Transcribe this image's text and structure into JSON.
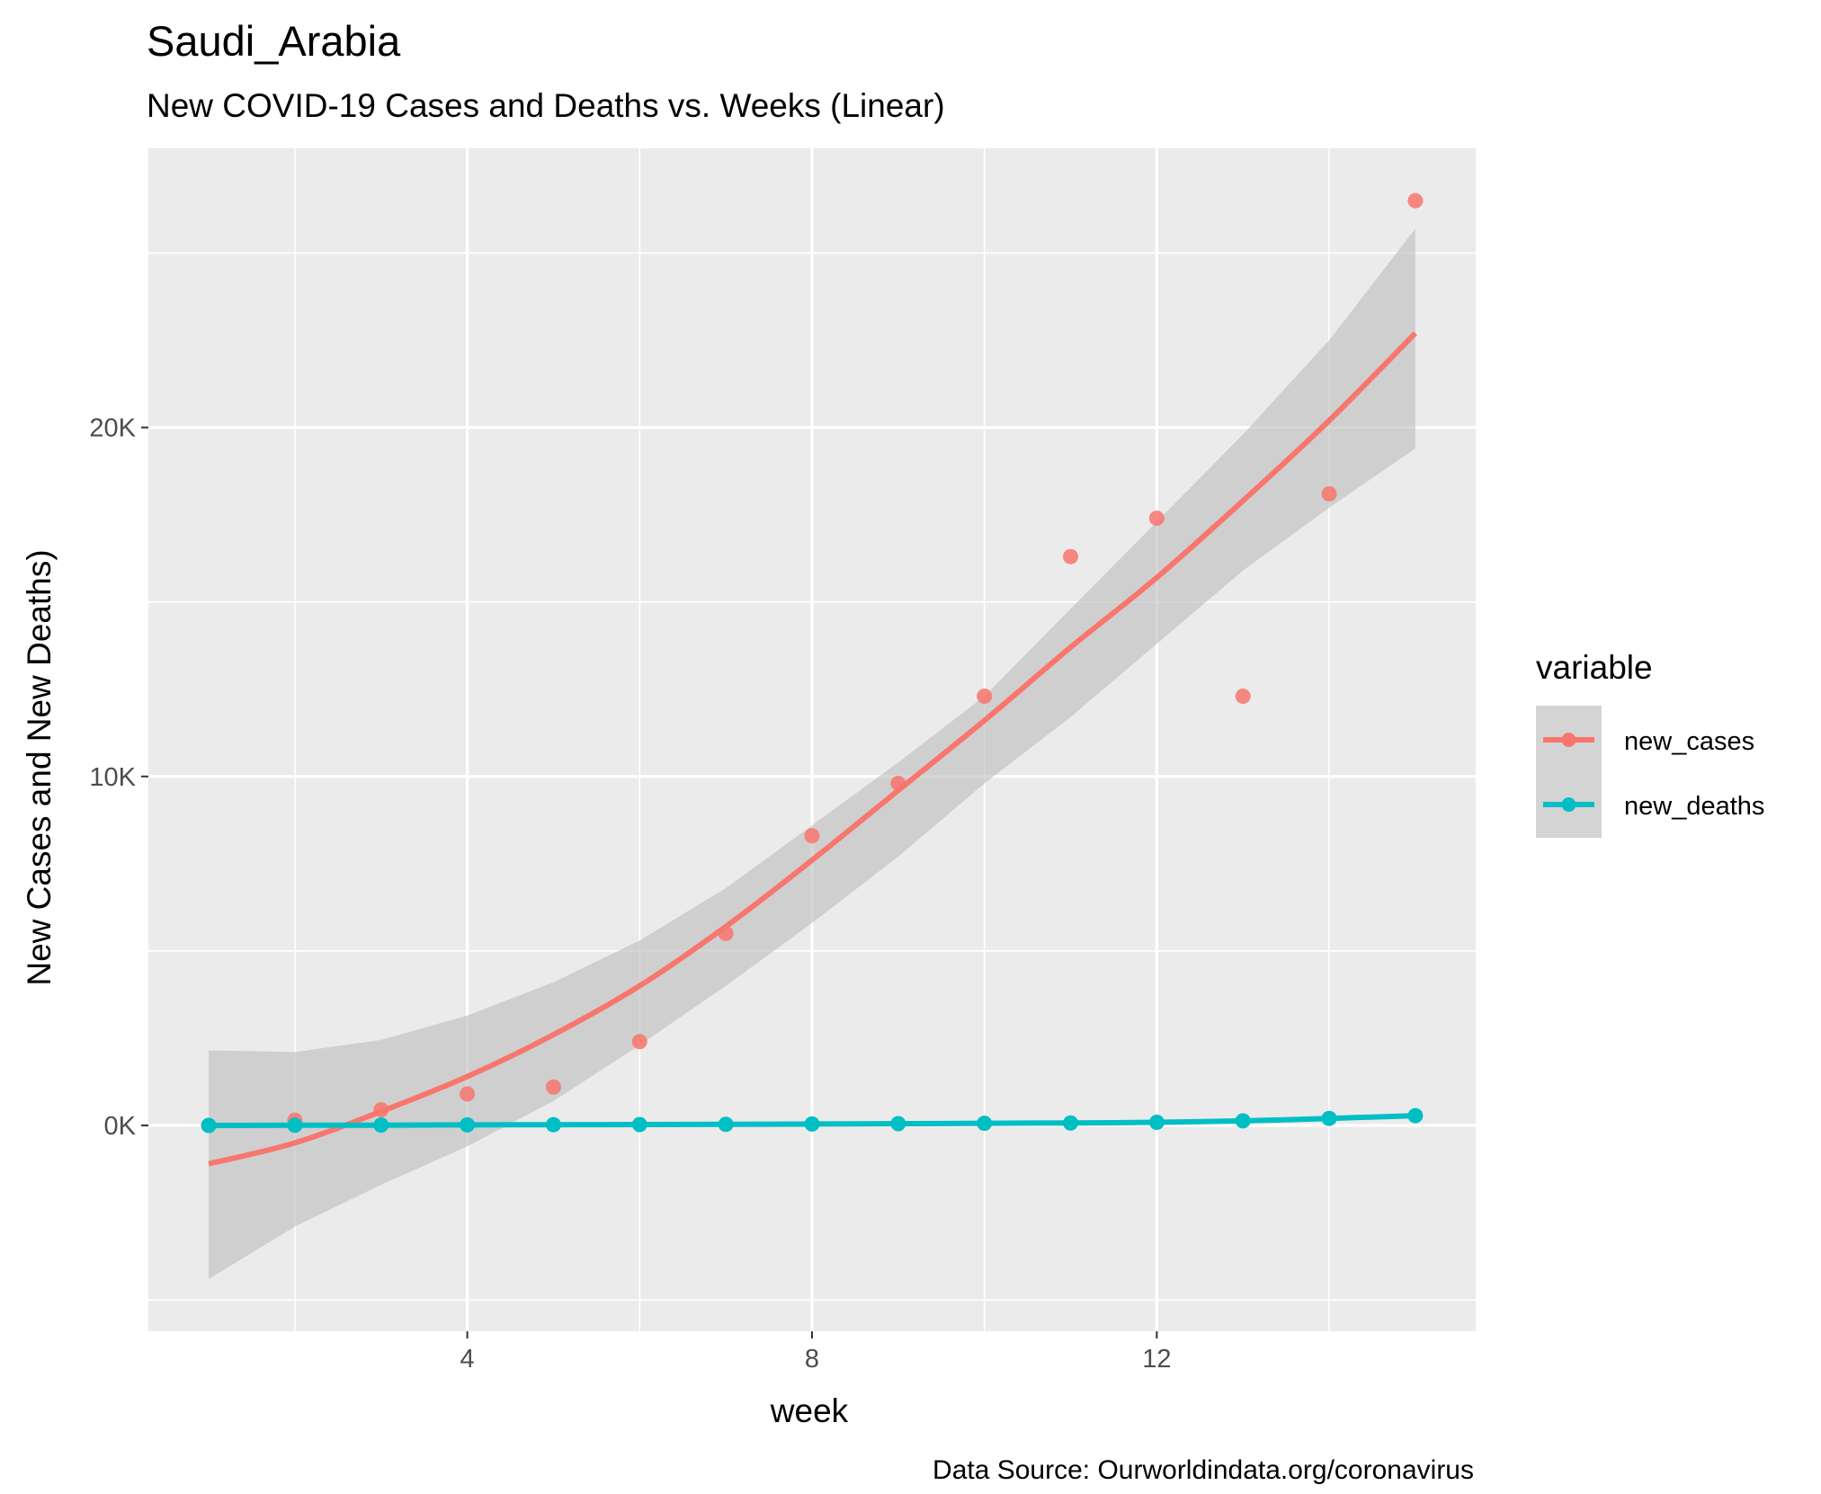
{
  "chart_data": {
    "type": "scatter",
    "title": "Saudi_Arabia",
    "subtitle": "New COVID-19 Cases and Deaths vs. Weeks (Linear)",
    "caption": "Data Source: Ourworldindata.org/coronavirus",
    "xlabel": "week",
    "ylabel": "New Cases and New Deaths)",
    "xlim": [
      0.3,
      15.7
    ],
    "ylim": [
      -5900,
      28000
    ],
    "x_ticks": [
      {
        "value": 4,
        "label": "4"
      },
      {
        "value": 8,
        "label": "8"
      },
      {
        "value": 12,
        "label": "12"
      }
    ],
    "y_ticks": [
      {
        "value": 0,
        "label": "0K"
      },
      {
        "value": 10000,
        "label": "10K"
      },
      {
        "value": 20000,
        "label": "20K"
      }
    ],
    "grid": true,
    "legend": {
      "title": "variable",
      "position": "right"
    },
    "series": [
      {
        "name": "new_cases",
        "color": "#F8766D",
        "points": [
          {
            "x": 1,
            "y": 0
          },
          {
            "x": 2,
            "y": 150
          },
          {
            "x": 3,
            "y": 450
          },
          {
            "x": 4,
            "y": 900
          },
          {
            "x": 5,
            "y": 1100
          },
          {
            "x": 6,
            "y": 2400
          },
          {
            "x": 7,
            "y": 5500
          },
          {
            "x": 8,
            "y": 8300
          },
          {
            "x": 9,
            "y": 9800
          },
          {
            "x": 10,
            "y": 12300
          },
          {
            "x": 11,
            "y": 16300
          },
          {
            "x": 12,
            "y": 17400
          },
          {
            "x": 13,
            "y": 12300
          },
          {
            "x": 14,
            "y": 18100
          },
          {
            "x": 15,
            "y": 26500
          }
        ],
        "fit": [
          {
            "x": 1,
            "y": -1100
          },
          {
            "x": 2,
            "y": -500
          },
          {
            "x": 3,
            "y": 400
          },
          {
            "x": 4,
            "y": 1400
          },
          {
            "x": 5,
            "y": 2600
          },
          {
            "x": 6,
            "y": 4000
          },
          {
            "x": 7,
            "y": 5700
          },
          {
            "x": 8,
            "y": 7600
          },
          {
            "x": 9,
            "y": 9600
          },
          {
            "x": 10,
            "y": 11600
          },
          {
            "x": 11,
            "y": 13700
          },
          {
            "x": 12,
            "y": 15700
          },
          {
            "x": 13,
            "y": 17900
          },
          {
            "x": 14,
            "y": 20200
          },
          {
            "x": 15,
            "y": 22700
          }
        ],
        "ci_upper": [
          2150,
          2100,
          2450,
          3150,
          4100,
          5300,
          6800,
          8600,
          10400,
          12300,
          14800,
          17300,
          19800,
          22500,
          25700
        ],
        "ci_lower": [
          -4400,
          -2900,
          -1700,
          -600,
          700,
          2300,
          4000,
          5800,
          7700,
          9800,
          11700,
          13800,
          15900,
          17700,
          19400
        ]
      },
      {
        "name": "new_deaths",
        "color": "#00BFC4",
        "points": [
          {
            "x": 1,
            "y": 0
          },
          {
            "x": 2,
            "y": 5
          },
          {
            "x": 3,
            "y": 8
          },
          {
            "x": 4,
            "y": 15
          },
          {
            "x": 5,
            "y": 20
          },
          {
            "x": 6,
            "y": 25
          },
          {
            "x": 7,
            "y": 30
          },
          {
            "x": 8,
            "y": 40
          },
          {
            "x": 9,
            "y": 50
          },
          {
            "x": 10,
            "y": 60
          },
          {
            "x": 11,
            "y": 70
          },
          {
            "x": 12,
            "y": 90
          },
          {
            "x": 13,
            "y": 130
          },
          {
            "x": 14,
            "y": 200
          },
          {
            "x": 15,
            "y": 280
          }
        ],
        "fit": [
          {
            "x": 1,
            "y": 0
          },
          {
            "x": 2,
            "y": 5
          },
          {
            "x": 3,
            "y": 8
          },
          {
            "x": 4,
            "y": 15
          },
          {
            "x": 5,
            "y": 20
          },
          {
            "x": 6,
            "y": 25
          },
          {
            "x": 7,
            "y": 30
          },
          {
            "x": 8,
            "y": 40
          },
          {
            "x": 9,
            "y": 50
          },
          {
            "x": 10,
            "y": 60
          },
          {
            "x": 11,
            "y": 70
          },
          {
            "x": 12,
            "y": 90
          },
          {
            "x": 13,
            "y": 130
          },
          {
            "x": 14,
            "y": 200
          },
          {
            "x": 15,
            "y": 280
          }
        ]
      }
    ],
    "ci_band_color": "#bdbdbd",
    "panel_color": "#EBEBEB"
  }
}
